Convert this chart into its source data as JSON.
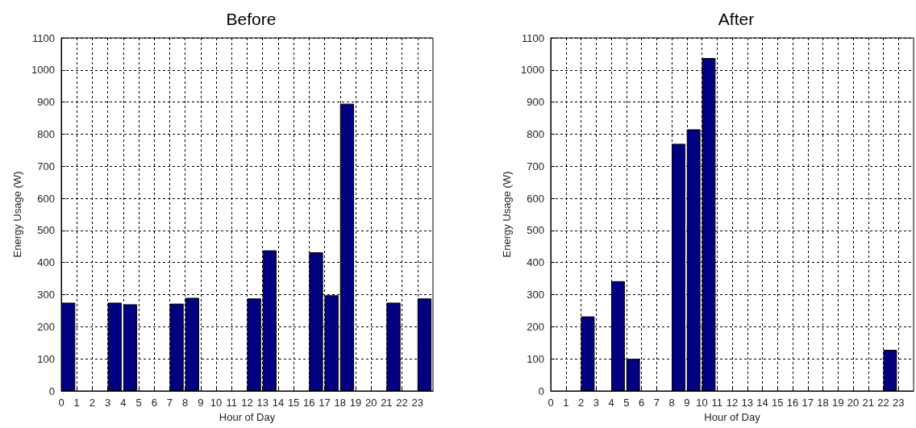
{
  "chart_data": [
    {
      "type": "bar",
      "title": "Before",
      "xlabel": "Hour of Day",
      "ylabel": "Energy Usage (W)",
      "x": [
        0.45,
        3.45,
        4.45,
        7.45,
        8.45,
        12.45,
        13.45,
        16.45,
        17.45,
        18.45,
        21.45,
        23.45
      ],
      "values": [
        275,
        275,
        270,
        272,
        290,
        288,
        438,
        432,
        298,
        895,
        275,
        288
      ],
      "color": "#000080",
      "xlim": [
        0,
        24
      ],
      "xticks": [
        0,
        1,
        2,
        3,
        4,
        5,
        6,
        7,
        8,
        9,
        10,
        11,
        12,
        13,
        14,
        15,
        16,
        17,
        18,
        19,
        20,
        21,
        22,
        23
      ],
      "ylim": [
        0,
        1100
      ],
      "yticks": [
        0,
        100,
        200,
        300,
        400,
        500,
        600,
        700,
        800,
        900,
        1000,
        1100
      ],
      "grid": true
    },
    {
      "type": "bar",
      "title": "After",
      "xlabel": "Hour of Day",
      "ylabel": "Energy Usage (W)",
      "x": [
        2.45,
        4.45,
        5.45,
        8.45,
        9.45,
        10.45,
        22.45
      ],
      "values": [
        232,
        342,
        100,
        770,
        815,
        1037,
        128
      ],
      "color": "#000080",
      "xlim": [
        0,
        24
      ],
      "xticks": [
        0,
        1,
        2,
        3,
        4,
        5,
        6,
        7,
        8,
        9,
        10,
        11,
        12,
        13,
        14,
        15,
        16,
        17,
        18,
        19,
        20,
        21,
        22,
        23
      ],
      "ylim": [
        0,
        1100
      ],
      "yticks": [
        0,
        100,
        200,
        300,
        400,
        500,
        600,
        700,
        800,
        900,
        1000,
        1100
      ],
      "grid": true
    }
  ]
}
